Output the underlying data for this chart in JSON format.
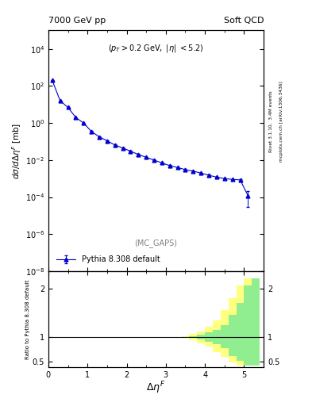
{
  "title_left": "7000 GeV pp",
  "title_right": "Soft QCD",
  "watermark": "(MC_GAPS)",
  "ylabel_main": "d\\sigma/d\\Delta\\eta^{F} [mb]",
  "ylabel_ratio": "Ratio to Pythia 8.308 default",
  "xlabel": "\\Delta\\eta^{F}",
  "rivet_label": "Rivet 3.1.10,  3.4M events",
  "arxiv_label": "mcplots.cern.ch [arXiv:1306.3436]",
  "legend_label": "Pythia 8.308 default",
  "main_x": [
    0.1,
    0.3,
    0.5,
    0.7,
    0.9,
    1.1,
    1.3,
    1.5,
    1.7,
    1.9,
    2.1,
    2.3,
    2.5,
    2.7,
    2.9,
    3.1,
    3.3,
    3.5,
    3.7,
    3.9,
    4.1,
    4.3,
    4.5,
    4.7,
    4.9,
    5.1
  ],
  "main_y": [
    200.0,
    16.0,
    7.0,
    2.0,
    1.0,
    0.35,
    0.18,
    0.11,
    0.065,
    0.045,
    0.03,
    0.02,
    0.014,
    0.01,
    0.007,
    0.005,
    0.004,
    0.003,
    0.0025,
    0.002,
    0.0015,
    0.0012,
    0.001,
    0.0009,
    0.00085,
    0.00012
  ],
  "main_yerr": [
    5.0,
    0.5,
    0.2,
    0.08,
    0.04,
    0.015,
    0.008,
    0.005,
    0.003,
    0.002,
    0.0015,
    0.001,
    0.0007,
    0.0005,
    0.0004,
    0.0003,
    0.00025,
    0.0002,
    0.00015,
    0.00012,
    0.0001,
    8e-05,
    7e-05,
    6e-05,
    6e-05,
    9e-05
  ],
  "xlim": [
    0,
    5.5
  ],
  "ylim_main": [
    1e-08,
    100000.0
  ],
  "ylim_ratio": [
    0.38,
    2.35
  ],
  "ratio_yticks": [
    0.5,
    1.0,
    2.0
  ],
  "ratio_band_x": [
    0.0,
    0.2,
    0.4,
    0.6,
    0.8,
    1.0,
    1.2,
    1.4,
    1.6,
    1.8,
    2.0,
    2.2,
    2.4,
    2.6,
    2.8,
    3.0,
    3.2,
    3.4,
    3.6,
    3.8,
    4.0,
    4.2,
    4.4,
    4.6,
    4.8,
    5.0,
    5.2,
    5.4
  ],
  "ratio_green_upper": [
    1.0,
    1.0,
    1.0,
    1.0,
    1.0,
    1.0,
    1.0,
    1.0,
    1.0,
    1.0,
    1.0,
    1.0,
    1.0,
    1.0,
    1.0,
    1.0,
    1.0,
    1.0,
    1.02,
    1.05,
    1.1,
    1.15,
    1.25,
    1.45,
    1.7,
    2.05,
    2.2,
    2.2
  ],
  "ratio_green_lower": [
    1.0,
    1.0,
    1.0,
    1.0,
    1.0,
    1.0,
    1.0,
    1.0,
    1.0,
    1.0,
    1.0,
    1.0,
    1.0,
    1.0,
    1.0,
    1.0,
    1.0,
    1.0,
    0.98,
    0.95,
    0.9,
    0.85,
    0.77,
    0.62,
    0.52,
    0.42,
    0.42,
    0.42
  ],
  "ratio_yellow_upper": [
    1.0,
    1.0,
    1.0,
    1.0,
    1.0,
    1.0,
    1.0,
    1.0,
    1.0,
    1.0,
    1.0,
    1.0,
    1.0,
    1.0,
    1.0,
    1.0,
    1.0,
    1.02,
    1.06,
    1.12,
    1.22,
    1.35,
    1.55,
    1.8,
    2.05,
    2.2,
    2.2,
    2.2
  ],
  "ratio_yellow_lower": [
    1.0,
    1.0,
    1.0,
    1.0,
    1.0,
    1.0,
    1.0,
    1.0,
    1.0,
    1.0,
    1.0,
    1.0,
    1.0,
    1.0,
    1.0,
    1.0,
    1.0,
    0.98,
    0.94,
    0.88,
    0.8,
    0.7,
    0.6,
    0.48,
    0.42,
    0.42,
    0.42,
    0.42
  ],
  "line_color": "#0000CC",
  "green_color": "#90EE90",
  "yellow_color": "#FFFF80",
  "background_color": "#ffffff"
}
